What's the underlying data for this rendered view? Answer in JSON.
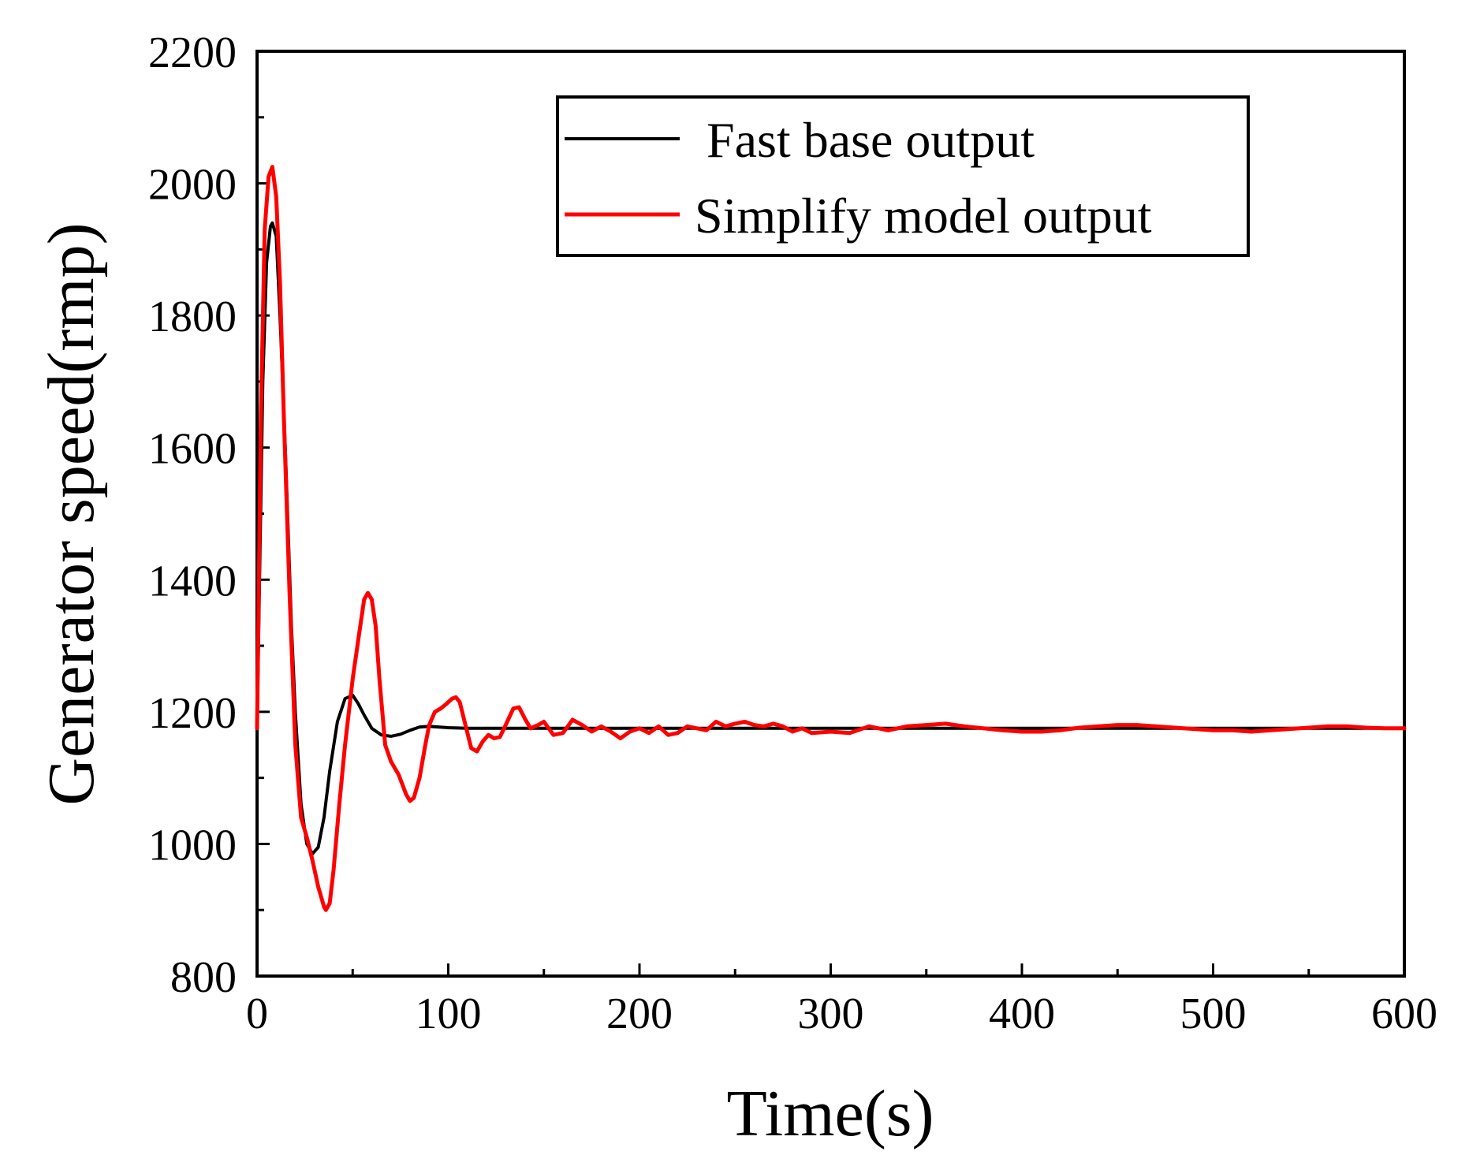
{
  "chart_data": {
    "type": "line",
    "title": "",
    "xlabel": "Time(s)",
    "ylabel": "Generator speed(rmp)",
    "xlim": [
      0,
      600
    ],
    "ylim": [
      800,
      2200
    ],
    "xticks": [
      "0",
      "100",
      "200",
      "300",
      "400",
      "500",
      "600"
    ],
    "yticks": [
      "800",
      "1000",
      "1200",
      "1400",
      "1600",
      "1800",
      "2000",
      "2200"
    ],
    "legend_position": "top-right",
    "series": [
      {
        "name": "Fast base output",
        "color": "#000000",
        "x": [
          0,
          3,
          5,
          7,
          8,
          10,
          12,
          15,
          18,
          20,
          23,
          26,
          29,
          32,
          35,
          38,
          42,
          46,
          50,
          53,
          56,
          60,
          65,
          70,
          75,
          80,
          85,
          90,
          95,
          100,
          110,
          120,
          140,
          160,
          200,
          300,
          400,
          500,
          600
        ],
        "y": [
          1170,
          1700,
          1880,
          1935,
          1940,
          1920,
          1800,
          1580,
          1330,
          1200,
          1060,
          1000,
          985,
          995,
          1040,
          1110,
          1185,
          1220,
          1225,
          1212,
          1195,
          1175,
          1165,
          1163,
          1166,
          1172,
          1177,
          1178,
          1177,
          1176,
          1175,
          1175,
          1175,
          1175,
          1175,
          1175,
          1175,
          1175,
          1175
        ]
      },
      {
        "name": "Simplify model output",
        "color": "#ff0000",
        "x": [
          0,
          2,
          4,
          6,
          8,
          10,
          12,
          14,
          17,
          20,
          23,
          26,
          29,
          32,
          35,
          36,
          38,
          40,
          43,
          46,
          50,
          53,
          56,
          58,
          60,
          62,
          64,
          67,
          70,
          74,
          78,
          80,
          82,
          85,
          88,
          90,
          93,
          96,
          99,
          102,
          104,
          106,
          109,
          112,
          115,
          118,
          121,
          124,
          127,
          130,
          134,
          137,
          140,
          143,
          147,
          150,
          155,
          160,
          165,
          170,
          175,
          180,
          185,
          190,
          195,
          200,
          205,
          210,
          215,
          220,
          225,
          230,
          235,
          240,
          245,
          250,
          255,
          260,
          265,
          270,
          275,
          280,
          285,
          290,
          300,
          310,
          320,
          330,
          340,
          350,
          360,
          370,
          380,
          390,
          400,
          410,
          420,
          430,
          440,
          450,
          460,
          470,
          480,
          490,
          500,
          510,
          520,
          530,
          540,
          550,
          560,
          570,
          580,
          590,
          600
        ],
        "y": [
          1175,
          1650,
          1930,
          2010,
          2025,
          1980,
          1850,
          1650,
          1380,
          1150,
          1040,
          1010,
          975,
          935,
          905,
          900,
          910,
          960,
          1060,
          1150,
          1250,
          1310,
          1370,
          1380,
          1370,
          1330,
          1250,
          1150,
          1125,
          1105,
          1075,
          1065,
          1070,
          1100,
          1150,
          1180,
          1200,
          1205,
          1212,
          1220,
          1222,
          1215,
          1180,
          1145,
          1140,
          1155,
          1165,
          1160,
          1162,
          1180,
          1205,
          1207,
          1190,
          1175,
          1180,
          1185,
          1165,
          1168,
          1188,
          1180,
          1170,
          1178,
          1170,
          1160,
          1170,
          1175,
          1168,
          1178,
          1165,
          1168,
          1178,
          1175,
          1172,
          1185,
          1178,
          1182,
          1185,
          1180,
          1178,
          1182,
          1178,
          1170,
          1175,
          1168,
          1170,
          1168,
          1178,
          1172,
          1178,
          1180,
          1182,
          1178,
          1175,
          1172,
          1170,
          1170,
          1172,
          1176,
          1178,
          1180,
          1180,
          1178,
          1176,
          1174,
          1172,
          1172,
          1170,
          1172,
          1174,
          1176,
          1178,
          1178,
          1176,
          1175,
          1175
        ]
      }
    ]
  }
}
